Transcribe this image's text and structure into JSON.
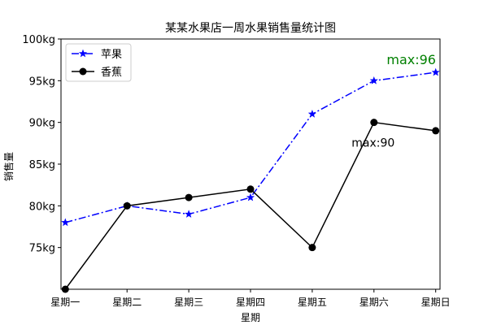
{
  "chart_data": {
    "type": "line",
    "title": "某某水果店一周水果销售量统计图",
    "xlabel": "星期",
    "ylabel": "销售量",
    "categories": [
      "星期一",
      "星期二",
      "星期三",
      "星期四",
      "星期五",
      "星期六",
      "星期日"
    ],
    "y_ticks": [
      75,
      80,
      85,
      90,
      95,
      100
    ],
    "y_tick_labels": [
      "75kg",
      "80kg",
      "85kg",
      "90kg",
      "95kg",
      "100kg"
    ],
    "ylim": [
      70,
      100
    ],
    "grid": false,
    "legend_position": "top-left",
    "series": [
      {
        "name": "苹果",
        "values": [
          78,
          80,
          79,
          81,
          91,
          95,
          96
        ],
        "color": "#0000ff",
        "line_style": "dash-dot",
        "marker": "star"
      },
      {
        "name": "香蕉",
        "values": [
          70,
          80,
          81,
          82,
          75,
          90,
          89
        ],
        "color": "#000000",
        "line_style": "solid",
        "marker": "circle"
      }
    ],
    "annotations": [
      {
        "text": "max:96",
        "color": "#008000",
        "series": 0,
        "index": 6
      },
      {
        "text": "max:90",
        "color": "#000000",
        "series": 1,
        "index": 5
      }
    ]
  }
}
